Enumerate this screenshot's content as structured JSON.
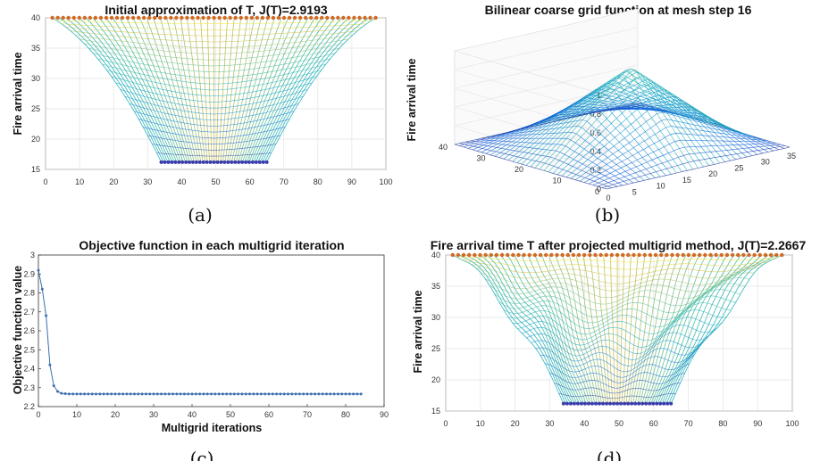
{
  "chart_data": [
    {
      "id": "a",
      "type": "surface",
      "title": "Initial approximation of T, J(T)=2.9193",
      "ylabel": "Fire arrival time",
      "xlabel": "",
      "xlim": [
        0,
        100
      ],
      "ylim": [
        15,
        40
      ],
      "xticks": [
        0,
        10,
        20,
        30,
        40,
        50,
        60,
        70,
        80,
        90,
        100
      ],
      "yticks": [
        15,
        20,
        25,
        30,
        35,
        40
      ],
      "top_level": 40,
      "bottom_level": 16.2,
      "top_x_range": [
        2,
        97
      ],
      "bottom_x_range": [
        34,
        65
      ],
      "top_marker_color": "#d2692a",
      "bottom_marker_color": "#3a3cab",
      "grid": true,
      "caption": "(a)"
    },
    {
      "id": "b",
      "type": "surface3d",
      "title": "Bilinear coarse grid function at mesh step 16",
      "zlabel": "Fire arrival time",
      "xlim": [
        0,
        35
      ],
      "ylim": [
        0,
        40
      ],
      "zlim": [
        0,
        1
      ],
      "xticks": [
        0,
        5,
        10,
        15,
        20,
        25,
        30,
        35
      ],
      "yticks": [
        0,
        10,
        20,
        30,
        40
      ],
      "zticks": [
        0,
        0.2,
        0.4,
        0.6,
        0.8,
        1
      ],
      "peak": {
        "x": 17,
        "y": 17,
        "z": 0.9
      },
      "grid": true,
      "caption": "(b)"
    },
    {
      "id": "c",
      "type": "line",
      "title": "Objective function in each multigrid iteration",
      "xlabel": "Multigrid iterations",
      "ylabel": "Objective function value",
      "xlim": [
        0,
        90
      ],
      "ylim": [
        2.2,
        3
      ],
      "xticks": [
        0,
        10,
        20,
        30,
        40,
        50,
        60,
        70,
        80,
        90
      ],
      "yticks": [
        2.2,
        2.3,
        2.4,
        2.5,
        2.6,
        2.7,
        2.8,
        2.9,
        3
      ],
      "series": [
        {
          "color": "#3a6fb0",
          "head_values": [
            2.9193,
            2.82,
            2.68,
            2.42,
            2.31,
            2.28,
            2.27,
            2.268
          ],
          "tail_value": 2.2667,
          "x_range": [
            0,
            84
          ]
        }
      ],
      "grid": false,
      "caption": "(c)"
    },
    {
      "id": "d",
      "type": "surface",
      "title": "Fire arrival time T after projected multigrid method, J(T)=2.2667",
      "ylabel": "Fire arrival time",
      "xlabel": "",
      "xlim": [
        0,
        100
      ],
      "ylim": [
        15,
        40
      ],
      "xticks": [
        0,
        10,
        20,
        30,
        40,
        50,
        60,
        70,
        80,
        90,
        100
      ],
      "yticks": [
        15,
        20,
        25,
        30,
        35,
        40
      ],
      "top_level": 40,
      "bottom_level": 16.2,
      "top_x_range": [
        2,
        97
      ],
      "bottom_x_range": [
        34,
        65
      ],
      "top_marker_color": "#d2692a",
      "bottom_marker_color": "#3a3cab",
      "grid": true,
      "caption": "(d)"
    }
  ]
}
